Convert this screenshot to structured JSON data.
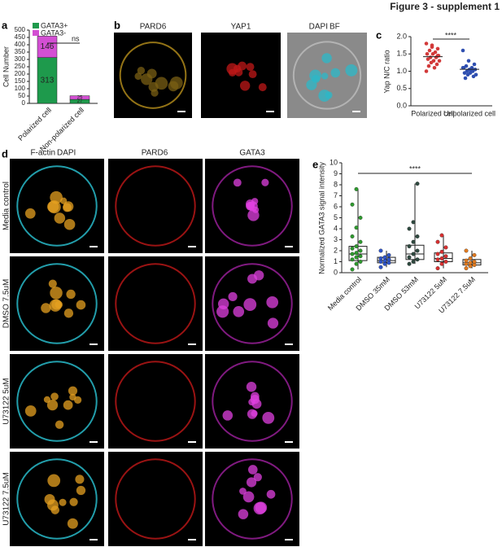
{
  "figure_title": "Figure 3 - supplement 1",
  "panel_labels": [
    "a",
    "b",
    "c",
    "d",
    "e"
  ],
  "panel_b_labels": [
    {
      "text": "PARD6",
      "color": "#c8a22a"
    },
    {
      "text": "YAP1",
      "color": "#e02020"
    },
    {
      "text": "DAPI",
      "color": "#2bc6d6"
    },
    {
      "text": "BF",
      "color": "#111111"
    }
  ],
  "panel_d_columns": [
    {
      "text": "F-actin",
      "color": "#2bc6d6"
    },
    {
      "text": "DAPI",
      "color": "#e6a020"
    },
    {
      "text": "PARD6",
      "color": "#d02020"
    },
    {
      "text": "GATA3",
      "color": "#c020c0"
    }
  ],
  "panel_d_rows": [
    "Media control",
    "DMSO 7.5uM",
    "U73122 5uM",
    "U73122 7.5uM"
  ],
  "chart_data": [
    {
      "type": "stacked-bar",
      "ylabel": "Cell Number",
      "categories": [
        "Polarized cell",
        "Non-polarized cell"
      ],
      "series": [
        {
          "name": "GATA3+",
          "color": "#1e9a4c",
          "values": [
            313,
            27
          ]
        },
        {
          "name": "GATA3-",
          "color": "#d34fd3",
          "values": [
            146,
            25
          ]
        }
      ],
      "ylim": [
        0,
        500
      ],
      "yticks": [
        0,
        50,
        100,
        150,
        200,
        250,
        300,
        350,
        400,
        450,
        500
      ],
      "annotation": "ns"
    },
    {
      "type": "strip",
      "ylabel": "Yap N/C ratio",
      "categories": [
        "Polarized cell",
        "Unpolarized cell"
      ],
      "colors": [
        "#d23a3a",
        "#2f4fb0"
      ],
      "values": [
        [
          1.8,
          1.7,
          1.65,
          1.6,
          1.55,
          1.5,
          1.5,
          1.45,
          1.4,
          1.4,
          1.35,
          1.3,
          1.3,
          1.25,
          1.2,
          1.15,
          1.1,
          1.0,
          1.75,
          1.45
        ],
        [
          1.6,
          1.3,
          1.2,
          1.15,
          1.1,
          1.1,
          1.05,
          1.05,
          1.0,
          1.0,
          0.95,
          0.95,
          0.9,
          0.9,
          0.85,
          0.8,
          1.0,
          1.1
        ]
      ],
      "ylim": [
        0,
        2
      ],
      "yticks": [
        {
          "value": 0,
          "label": "0.0"
        },
        0.5,
        {
          "value": 1,
          "label": "1.0"
        },
        1.5,
        {
          "value": 2,
          "label": "2.0"
        }
      ],
      "annotation": "****"
    },
    {
      "type": "box",
      "ylabel": "Normalized GATA3 signal intensity",
      "categories": [
        "Media control",
        "DMSO 35mM",
        "DMSO 53mM",
        "U73122 5uM",
        "U73122 7.5uM"
      ],
      "colors": [
        "#2f9a2f",
        "#2f55c8",
        "#2f4a40",
        "#d83030",
        "#e07a20"
      ],
      "boxes": [
        {
          "min": 0.3,
          "q1": 1.1,
          "median": 1.7,
          "q3": 2.4,
          "max": 7.6
        },
        {
          "min": 0.5,
          "q1": 0.9,
          "median": 1.1,
          "q3": 1.4,
          "max": 2.0
        },
        {
          "min": 0.8,
          "q1": 1.2,
          "median": 1.7,
          "q3": 2.5,
          "max": 8.1
        },
        {
          "min": 0.4,
          "q1": 1.0,
          "median": 1.3,
          "q3": 1.8,
          "max": 3.4
        },
        {
          "min": 0.4,
          "q1": 0.7,
          "median": 0.9,
          "q3": 1.2,
          "max": 2.0
        }
      ],
      "points": [
        [
          0.3,
          0.8,
          1.0,
          1.2,
          1.4,
          1.5,
          1.7,
          1.8,
          2.0,
          2.2,
          2.4,
          2.8,
          3.3,
          4.1,
          5.0,
          6.2,
          7.6
        ],
        [
          0.5,
          0.8,
          0.9,
          1.0,
          1.1,
          1.2,
          1.3,
          1.4,
          1.6,
          2.0
        ],
        [
          0.8,
          1.0,
          1.2,
          1.4,
          1.7,
          2.0,
          2.4,
          2.8,
          3.3,
          4.0,
          4.6,
          8.1
        ],
        [
          0.4,
          0.8,
          1.0,
          1.2,
          1.3,
          1.5,
          1.7,
          1.9,
          2.3,
          2.8,
          3.4
        ],
        [
          0.4,
          0.6,
          0.7,
          0.8,
          0.9,
          1.0,
          1.1,
          1.3,
          1.6,
          2.0
        ]
      ],
      "ylim": [
        0,
        10
      ],
      "yticks": [
        0,
        1,
        2,
        3,
        4,
        5,
        6,
        7,
        8,
        9,
        10
      ],
      "annotation": "****"
    }
  ]
}
